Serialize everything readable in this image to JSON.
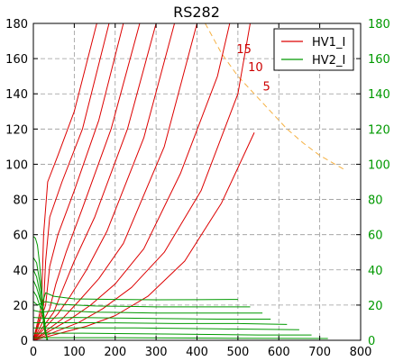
{
  "chart_data": {
    "type": "line",
    "title": "RS282",
    "xlim": [
      0,
      800
    ],
    "ylim": [
      0,
      180
    ],
    "y2lim": [
      0,
      180
    ],
    "xticks": [
      0,
      100,
      200,
      300,
      400,
      500,
      600,
      700,
      800
    ],
    "yticks": [
      0,
      20,
      40,
      60,
      80,
      100,
      120,
      140,
      160,
      180
    ],
    "y2ticks": [
      0,
      20,
      40,
      60,
      80,
      100,
      120,
      140,
      160,
      180
    ],
    "grid": true,
    "legend": {
      "placement": "top-right",
      "entries": [
        {
          "name": "HV1_I",
          "color": "#dd0000"
        },
        {
          "name": "HV2_I",
          "color": "#009900"
        }
      ]
    },
    "colors": {
      "hv1": "#dd0000",
      "hv2": "#009900",
      "power_limit": "#f5b041",
      "grid": "#999999"
    },
    "power_limit_curve": {
      "labels": [
        "15",
        "10",
        "5"
      ],
      "label_points": [
        {
          "x": 515,
          "y": 163
        },
        {
          "x": 543,
          "y": 153
        },
        {
          "x": 570,
          "y": 142
        }
      ],
      "points": [
        {
          "x": 420,
          "y": 180
        },
        {
          "x": 460,
          "y": 163
        },
        {
          "x": 500,
          "y": 150
        },
        {
          "x": 540,
          "y": 140
        },
        {
          "x": 580,
          "y": 130
        },
        {
          "x": 620,
          "y": 120
        },
        {
          "x": 660,
          "y": 112
        },
        {
          "x": 700,
          "y": 105
        },
        {
          "x": 760,
          "y": 97
        }
      ]
    },
    "series": [
      {
        "name": "HV1_I",
        "color": "#dd0000",
        "curves": [
          [
            {
              "x": 0,
              "y": 0
            },
            {
              "x": 20,
              "y": 20
            },
            {
              "x": 25,
              "y": 60
            },
            {
              "x": 35,
              "y": 90
            },
            {
              "x": 60,
              "y": 105
            },
            {
              "x": 100,
              "y": 130
            },
            {
              "x": 155,
              "y": 180
            }
          ],
          [
            {
              "x": 0,
              "y": 0
            },
            {
              "x": 25,
              "y": 20
            },
            {
              "x": 30,
              "y": 45
            },
            {
              "x": 40,
              "y": 70
            },
            {
              "x": 70,
              "y": 90
            },
            {
              "x": 120,
              "y": 120
            },
            {
              "x": 185,
              "y": 180
            }
          ],
          [
            {
              "x": 0,
              "y": 0
            },
            {
              "x": 30,
              "y": 20
            },
            {
              "x": 40,
              "y": 42
            },
            {
              "x": 60,
              "y": 60
            },
            {
              "x": 100,
              "y": 85
            },
            {
              "x": 160,
              "y": 125
            },
            {
              "x": 220,
              "y": 180
            }
          ],
          [
            {
              "x": 0,
              "y": 0
            },
            {
              "x": 40,
              "y": 18
            },
            {
              "x": 55,
              "y": 32
            },
            {
              "x": 80,
              "y": 50
            },
            {
              "x": 120,
              "y": 75
            },
            {
              "x": 190,
              "y": 120
            },
            {
              "x": 260,
              "y": 180
            }
          ],
          [
            {
              "x": 0,
              "y": 0
            },
            {
              "x": 50,
              "y": 16
            },
            {
              "x": 70,
              "y": 28
            },
            {
              "x": 100,
              "y": 45
            },
            {
              "x": 150,
              "y": 70
            },
            {
              "x": 230,
              "y": 120
            },
            {
              "x": 300,
              "y": 180
            }
          ],
          [
            {
              "x": 0,
              "y": 0
            },
            {
              "x": 60,
              "y": 15
            },
            {
              "x": 90,
              "y": 25
            },
            {
              "x": 130,
              "y": 40
            },
            {
              "x": 180,
              "y": 62
            },
            {
              "x": 270,
              "y": 115
            },
            {
              "x": 345,
              "y": 180
            }
          ],
          [
            {
              "x": 0,
              "y": 0
            },
            {
              "x": 70,
              "y": 12
            },
            {
              "x": 110,
              "y": 22
            },
            {
              "x": 160,
              "y": 35
            },
            {
              "x": 220,
              "y": 55
            },
            {
              "x": 320,
              "y": 110
            },
            {
              "x": 400,
              "y": 180
            }
          ],
          [
            {
              "x": 0,
              "y": 0
            },
            {
              "x": 90,
              "y": 12
            },
            {
              "x": 140,
              "y": 20
            },
            {
              "x": 200,
              "y": 32
            },
            {
              "x": 270,
              "y": 52
            },
            {
              "x": 360,
              "y": 95
            },
            {
              "x": 450,
              "y": 150
            },
            {
              "x": 480,
              "y": 180
            }
          ],
          [
            {
              "x": 0,
              "y": 0
            },
            {
              "x": 110,
              "y": 10
            },
            {
              "x": 170,
              "y": 18
            },
            {
              "x": 240,
              "y": 30
            },
            {
              "x": 320,
              "y": 50
            },
            {
              "x": 410,
              "y": 85
            },
            {
              "x": 500,
              "y": 140
            },
            {
              "x": 530,
              "y": 180
            }
          ],
          [
            {
              "x": 0,
              "y": 0
            },
            {
              "x": 130,
              "y": 8
            },
            {
              "x": 200,
              "y": 14
            },
            {
              "x": 280,
              "y": 25
            },
            {
              "x": 370,
              "y": 45
            },
            {
              "x": 460,
              "y": 78
            },
            {
              "x": 540,
              "y": 118
            }
          ]
        ]
      },
      {
        "name": "HV2_I",
        "color": "#009900",
        "curves": [
          [
            {
              "x": 0,
              "y": 59
            },
            {
              "x": 5,
              "y": 58
            },
            {
              "x": 10,
              "y": 54
            },
            {
              "x": 15,
              "y": 44
            },
            {
              "x": 20,
              "y": 30
            },
            {
              "x": 25,
              "y": 14
            },
            {
              "x": 30,
              "y": 5
            },
            {
              "x": 35,
              "y": 0
            }
          ],
          [
            {
              "x": 0,
              "y": 47
            },
            {
              "x": 8,
              "y": 44
            },
            {
              "x": 15,
              "y": 34
            },
            {
              "x": 22,
              "y": 22
            },
            {
              "x": 28,
              "y": 10
            },
            {
              "x": 33,
              "y": 0
            }
          ],
          [
            {
              "x": 0,
              "y": 40
            },
            {
              "x": 8,
              "y": 36
            },
            {
              "x": 15,
              "y": 28
            },
            {
              "x": 22,
              "y": 16
            },
            {
              "x": 28,
              "y": 5
            }
          ],
          [
            {
              "x": 0,
              "y": 34
            },
            {
              "x": 8,
              "y": 30
            },
            {
              "x": 18,
              "y": 22
            },
            {
              "x": 25,
              "y": 10
            },
            {
              "x": 30,
              "y": 3
            }
          ],
          [
            {
              "x": 0,
              "y": 28
            },
            {
              "x": 8,
              "y": 25
            },
            {
              "x": 18,
              "y": 18
            },
            {
              "x": 30,
              "y": 27
            },
            {
              "x": 50,
              "y": 25
            },
            {
              "x": 100,
              "y": 23.5
            },
            {
              "x": 200,
              "y": 23.2
            },
            {
              "x": 300,
              "y": 23
            },
            {
              "x": 400,
              "y": 23.1
            },
            {
              "x": 500,
              "y": 23.2
            }
          ],
          [
            {
              "x": 0,
              "y": 22
            },
            {
              "x": 10,
              "y": 20
            },
            {
              "x": 30,
              "y": 22
            },
            {
              "x": 60,
              "y": 20.5
            },
            {
              "x": 150,
              "y": 19.5
            },
            {
              "x": 300,
              "y": 19
            },
            {
              "x": 450,
              "y": 19
            },
            {
              "x": 530,
              "y": 19
            }
          ],
          [
            {
              "x": 0,
              "y": 17
            },
            {
              "x": 20,
              "y": 16
            },
            {
              "x": 60,
              "y": 17
            },
            {
              "x": 150,
              "y": 16
            },
            {
              "x": 300,
              "y": 15.5
            },
            {
              "x": 450,
              "y": 15.5
            },
            {
              "x": 560,
              "y": 15.5
            }
          ],
          [
            {
              "x": 0,
              "y": 13
            },
            {
              "x": 30,
              "y": 12.5
            },
            {
              "x": 100,
              "y": 13
            },
            {
              "x": 250,
              "y": 12.5
            },
            {
              "x": 450,
              "y": 12
            },
            {
              "x": 580,
              "y": 12
            }
          ],
          [
            {
              "x": 0,
              "y": 10
            },
            {
              "x": 50,
              "y": 10
            },
            {
              "x": 150,
              "y": 10
            },
            {
              "x": 350,
              "y": 9.5
            },
            {
              "x": 500,
              "y": 9.5
            },
            {
              "x": 620,
              "y": 9
            }
          ],
          [
            {
              "x": 0,
              "y": 7
            },
            {
              "x": 80,
              "y": 7
            },
            {
              "x": 250,
              "y": 7
            },
            {
              "x": 450,
              "y": 6.5
            },
            {
              "x": 650,
              "y": 6
            }
          ],
          [
            {
              "x": 0,
              "y": 4
            },
            {
              "x": 120,
              "y": 4
            },
            {
              "x": 350,
              "y": 3.5
            },
            {
              "x": 550,
              "y": 3
            },
            {
              "x": 680,
              "y": 3
            }
          ],
          [
            {
              "x": 0,
              "y": 1.5
            },
            {
              "x": 200,
              "y": 1.5
            },
            {
              "x": 450,
              "y": 1.2
            },
            {
              "x": 720,
              "y": 1
            }
          ]
        ]
      }
    ]
  }
}
